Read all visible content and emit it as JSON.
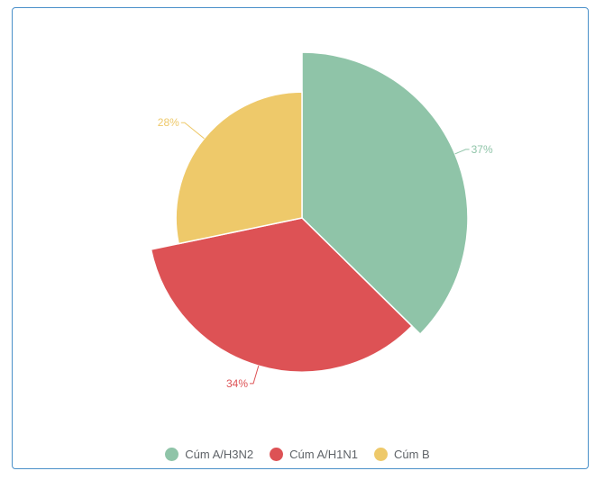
{
  "chart_data": {
    "type": "pie",
    "title": "",
    "variant": "variable-radius",
    "slices": [
      {
        "name": "Cúm A/H3N2",
        "value": 37,
        "label": "37%",
        "color": "#8fc4a8",
        "radius_rel": 1.0
      },
      {
        "name": "Cúm A/H1N1",
        "value": 34,
        "label": "34%",
        "color": "#dd5255",
        "radius_rel": 0.93
      },
      {
        "name": "Cúm B",
        "value": 28,
        "label": "28%",
        "color": "#eec96a",
        "radius_rel": 0.76
      }
    ],
    "legend_position": "bottom",
    "start_angle": "top, clockwise"
  },
  "legend": [
    {
      "label": "Cúm A/H3N2",
      "color": "#8fc4a8"
    },
    {
      "label": "Cúm A/H1N1",
      "color": "#dd5255"
    },
    {
      "label": "Cúm B",
      "color": "#eec96a"
    }
  ]
}
